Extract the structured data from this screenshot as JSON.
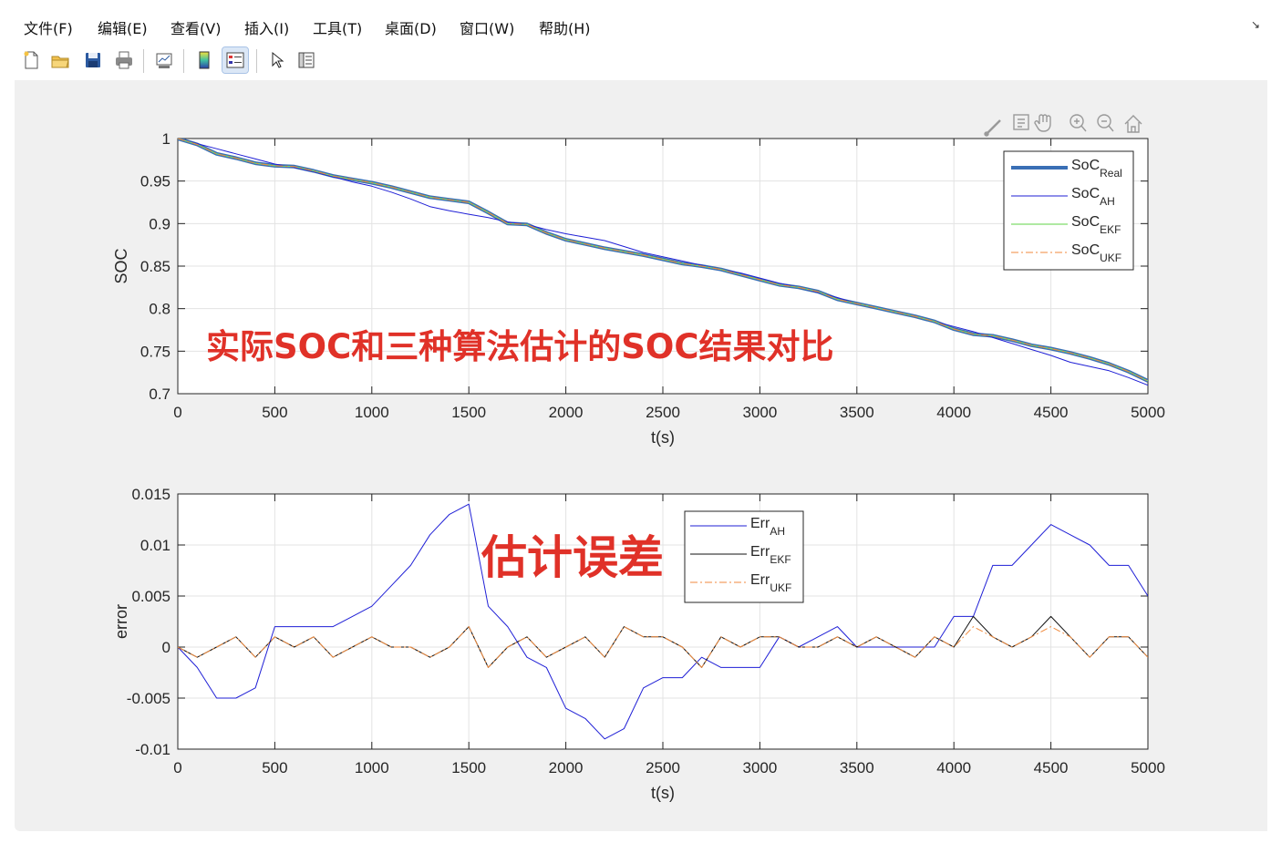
{
  "menu": [
    "文件(F)",
    "编辑(E)",
    "查看(V)",
    "插入(I)",
    "工具(T)",
    "桌面(D)",
    "窗口(W)",
    "帮助(H)"
  ],
  "undock_icon": "undock-arrow-icon",
  "toolbar_icons": [
    "new-figure-icon",
    "open-file-icon",
    "save-icon",
    "print-icon",
    "link-plot-icon",
    "colorbar-icon",
    "legend-icon",
    "edit-plot-arrow-icon",
    "property-inspector-icon"
  ],
  "axes_toolbar_icons": [
    "brush-icon",
    "datatip-icon",
    "pan-hand-icon",
    "zoom-in-icon",
    "zoom-out-icon",
    "home-icon"
  ],
  "annotations": {
    "top": "实际SOC和三种算法估计的SOC结果对比",
    "bottom": "估计误差"
  },
  "colors": {
    "real": "#3a6fb5",
    "ah": "#1f1fd6",
    "ekf": "#7fdc6a",
    "ukf": "#f08a3c",
    "err_ah": "#1f1fd6",
    "err_ekf": "#111111",
    "err_ukf": "#f08a3c",
    "annotation": "#e03128"
  },
  "chart_data": [
    {
      "type": "line",
      "xlabel": "t(s)",
      "ylabel": "SOC",
      "xlim": [
        0,
        5000
      ],
      "ylim": [
        0.7,
        1
      ],
      "xticks": [
        "0",
        "500",
        "1000",
        "1500",
        "2000",
        "2500",
        "3000",
        "3500",
        "4000",
        "4500",
        "5000"
      ],
      "yticks": [
        "0.7",
        "0.75",
        "0.8",
        "0.85",
        "0.9",
        "0.95",
        "1"
      ],
      "grid": true,
      "legend_position": "top-right",
      "series": [
        {
          "name": "SoC",
          "subscript": "Real",
          "style": "thick",
          "x": [
            0,
            100,
            200,
            300,
            400,
            500,
            600,
            700,
            800,
            900,
            1000,
            1100,
            1200,
            1300,
            1400,
            1500,
            1600,
            1700,
            1800,
            1900,
            2000,
            2100,
            2200,
            2300,
            2400,
            2500,
            2600,
            2700,
            2800,
            2900,
            3000,
            3100,
            3200,
            3300,
            3400,
            3500,
            3600,
            3700,
            3800,
            3900,
            4000,
            4100,
            4200,
            4300,
            4400,
            4500,
            4600,
            4700,
            4800,
            4900,
            5000
          ],
          "y": [
            1.0,
            0.993,
            0.982,
            0.977,
            0.971,
            0.968,
            0.967,
            0.962,
            0.956,
            0.952,
            0.948,
            0.943,
            0.937,
            0.931,
            0.928,
            0.925,
            0.913,
            0.9,
            0.899,
            0.889,
            0.881,
            0.876,
            0.871,
            0.867,
            0.863,
            0.858,
            0.853,
            0.85,
            0.846,
            0.84,
            0.834,
            0.828,
            0.825,
            0.82,
            0.811,
            0.806,
            0.801,
            0.796,
            0.791,
            0.785,
            0.776,
            0.77,
            0.768,
            0.763,
            0.757,
            0.753,
            0.748,
            0.742,
            0.735,
            0.726,
            0.715
          ]
        },
        {
          "name": "SoC",
          "subscript": "AH",
          "style": "thin",
          "x": [
            0,
            100,
            200,
            300,
            400,
            500,
            600,
            700,
            800,
            900,
            1000,
            1100,
            1200,
            1300,
            1400,
            1500,
            1600,
            1700,
            1800,
            1900,
            2000,
            2100,
            2200,
            2300,
            2400,
            2500,
            2600,
            2700,
            2800,
            2900,
            3000,
            3100,
            3200,
            3300,
            3400,
            3500,
            3600,
            3700,
            3800,
            3900,
            4000,
            4100,
            4200,
            4300,
            4400,
            4500,
            4600,
            4700,
            4800,
            4900,
            5000
          ],
          "y": [
            1.0,
            0.994,
            0.988,
            0.982,
            0.976,
            0.97,
            0.966,
            0.961,
            0.955,
            0.949,
            0.944,
            0.937,
            0.929,
            0.92,
            0.915,
            0.911,
            0.907,
            0.902,
            0.899,
            0.893,
            0.888,
            0.884,
            0.88,
            0.873,
            0.866,
            0.861,
            0.856,
            0.851,
            0.846,
            0.842,
            0.836,
            0.83,
            0.825,
            0.819,
            0.813,
            0.806,
            0.801,
            0.796,
            0.791,
            0.785,
            0.779,
            0.773,
            0.766,
            0.759,
            0.752,
            0.745,
            0.737,
            0.732,
            0.727,
            0.719,
            0.71
          ]
        },
        {
          "name": "SoC",
          "subscript": "EKF",
          "style": "thin",
          "x": [
            0,
            100,
            200,
            300,
            400,
            500,
            600,
            700,
            800,
            900,
            1000,
            1100,
            1200,
            1300,
            1400,
            1500,
            1600,
            1700,
            1800,
            1900,
            2000,
            2100,
            2200,
            2300,
            2400,
            2500,
            2600,
            2700,
            2800,
            2900,
            3000,
            3100,
            3200,
            3300,
            3400,
            3500,
            3600,
            3700,
            3800,
            3900,
            4000,
            4100,
            4200,
            4300,
            4400,
            4500,
            4600,
            4700,
            4800,
            4900,
            5000
          ],
          "y": [
            1.0,
            0.993,
            0.982,
            0.977,
            0.971,
            0.968,
            0.967,
            0.962,
            0.956,
            0.952,
            0.948,
            0.943,
            0.937,
            0.931,
            0.928,
            0.925,
            0.913,
            0.9,
            0.899,
            0.889,
            0.881,
            0.876,
            0.871,
            0.867,
            0.863,
            0.858,
            0.853,
            0.85,
            0.846,
            0.84,
            0.834,
            0.828,
            0.825,
            0.82,
            0.811,
            0.806,
            0.801,
            0.796,
            0.791,
            0.785,
            0.776,
            0.77,
            0.768,
            0.763,
            0.757,
            0.753,
            0.748,
            0.742,
            0.735,
            0.726,
            0.715
          ]
        },
        {
          "name": "SoC",
          "subscript": "UKF",
          "style": "dashdot",
          "x": [
            0,
            100,
            200,
            300,
            400,
            500,
            600,
            700,
            800,
            900,
            1000,
            1100,
            1200,
            1300,
            1400,
            1500,
            1600,
            1700,
            1800,
            1900,
            2000,
            2100,
            2200,
            2300,
            2400,
            2500,
            2600,
            2700,
            2800,
            2900,
            3000,
            3100,
            3200,
            3300,
            3400,
            3500,
            3600,
            3700,
            3800,
            3900,
            4000,
            4100,
            4200,
            4300,
            4400,
            4500,
            4600,
            4700,
            4800,
            4900,
            5000
          ],
          "y": [
            1.0,
            0.993,
            0.982,
            0.977,
            0.971,
            0.968,
            0.967,
            0.962,
            0.956,
            0.952,
            0.948,
            0.943,
            0.937,
            0.931,
            0.928,
            0.925,
            0.913,
            0.9,
            0.899,
            0.889,
            0.881,
            0.876,
            0.871,
            0.867,
            0.863,
            0.858,
            0.853,
            0.85,
            0.846,
            0.84,
            0.834,
            0.828,
            0.825,
            0.82,
            0.811,
            0.806,
            0.801,
            0.796,
            0.791,
            0.785,
            0.776,
            0.77,
            0.768,
            0.763,
            0.757,
            0.753,
            0.748,
            0.742,
            0.735,
            0.726,
            0.715
          ]
        }
      ]
    },
    {
      "type": "line",
      "xlabel": "t(s)",
      "ylabel": "error",
      "xlim": [
        0,
        5000
      ],
      "ylim": [
        -0.01,
        0.015
      ],
      "xticks": [
        "0",
        "500",
        "1000",
        "1500",
        "2000",
        "2500",
        "3000",
        "3500",
        "4000",
        "4500",
        "5000"
      ],
      "yticks": [
        "-0.01",
        "-0.005",
        "0",
        "0.005",
        "0.01",
        "0.015"
      ],
      "grid": true,
      "legend_position": "top-center",
      "series": [
        {
          "name": "Err",
          "subscript": "AH",
          "style": "thin",
          "x": [
            0,
            100,
            200,
            300,
            400,
            500,
            600,
            700,
            800,
            900,
            1000,
            1100,
            1200,
            1300,
            1400,
            1500,
            1600,
            1700,
            1800,
            1900,
            2000,
            2100,
            2200,
            2300,
            2400,
            2500,
            2600,
            2700,
            2800,
            2900,
            3000,
            3100,
            3200,
            3300,
            3400,
            3500,
            3600,
            3700,
            3800,
            3900,
            4000,
            4100,
            4200,
            4300,
            4400,
            4500,
            4600,
            4700,
            4800,
            4900,
            5000
          ],
          "y": [
            0.0,
            -0.002,
            -0.005,
            -0.005,
            -0.004,
            0.002,
            0.002,
            0.002,
            0.002,
            0.003,
            0.004,
            0.006,
            0.008,
            0.011,
            0.013,
            0.014,
            0.004,
            0.002,
            -0.001,
            -0.002,
            -0.006,
            -0.007,
            -0.009,
            -0.008,
            -0.004,
            -0.003,
            -0.003,
            -0.001,
            -0.002,
            -0.002,
            -0.002,
            0.001,
            0.0,
            0.001,
            0.002,
            0.0,
            0.0,
            0.0,
            0.0,
            0.0,
            0.003,
            0.003,
            0.008,
            0.008,
            0.01,
            0.012,
            0.011,
            0.01,
            0.008,
            0.008,
            0.005
          ]
        },
        {
          "name": "Err",
          "subscript": "EKF",
          "style": "thin",
          "x": [
            0,
            100,
            200,
            300,
            400,
            500,
            600,
            700,
            800,
            900,
            1000,
            1100,
            1200,
            1300,
            1400,
            1500,
            1600,
            1700,
            1800,
            1900,
            2000,
            2100,
            2200,
            2300,
            2400,
            2500,
            2600,
            2700,
            2800,
            2900,
            3000,
            3100,
            3200,
            3300,
            3400,
            3500,
            3600,
            3700,
            3800,
            3900,
            4000,
            4100,
            4200,
            4300,
            4400,
            4500,
            4600,
            4700,
            4800,
            4900,
            5000
          ],
          "y": [
            0.0,
            -0.001,
            0.0,
            0.001,
            -0.001,
            0.001,
            0.0,
            0.001,
            -0.001,
            0.0,
            0.001,
            0.0,
            0.0,
            -0.001,
            0.0,
            0.002,
            -0.002,
            0.0,
            0.001,
            -0.001,
            0.0,
            0.001,
            -0.001,
            0.002,
            0.001,
            0.001,
            0.0,
            -0.002,
            0.001,
            0.0,
            0.001,
            0.001,
            0.0,
            0.0,
            0.001,
            0.0,
            0.001,
            0.0,
            -0.001,
            0.001,
            0.0,
            0.003,
            0.001,
            0.0,
            0.001,
            0.003,
            0.001,
            -0.001,
            0.001,
            0.001,
            -0.001
          ]
        },
        {
          "name": "Err",
          "subscript": "UKF",
          "style": "dashdot",
          "x": [
            0,
            100,
            200,
            300,
            400,
            500,
            600,
            700,
            800,
            900,
            1000,
            1100,
            1200,
            1300,
            1400,
            1500,
            1600,
            1700,
            1800,
            1900,
            2000,
            2100,
            2200,
            2300,
            2400,
            2500,
            2600,
            2700,
            2800,
            2900,
            3000,
            3100,
            3200,
            3300,
            3400,
            3500,
            3600,
            3700,
            3800,
            3900,
            4000,
            4100,
            4200,
            4300,
            4400,
            4500,
            4600,
            4700,
            4800,
            4900,
            5000
          ],
          "y": [
            0.0,
            -0.001,
            0.0,
            0.001,
            -0.001,
            0.001,
            0.0,
            0.001,
            -0.001,
            0.0,
            0.001,
            0.0,
            0.0,
            -0.001,
            0.0,
            0.002,
            -0.002,
            0.0,
            0.001,
            -0.001,
            0.0,
            0.001,
            -0.001,
            0.002,
            0.001,
            0.001,
            0.0,
            -0.002,
            0.001,
            0.0,
            0.001,
            0.001,
            0.0,
            0.0,
            0.001,
            0.0,
            0.001,
            0.0,
            -0.001,
            0.001,
            0.0,
            0.002,
            0.001,
            0.0,
            0.001,
            0.002,
            0.001,
            -0.001,
            0.001,
            0.001,
            -0.001
          ]
        }
      ]
    }
  ]
}
